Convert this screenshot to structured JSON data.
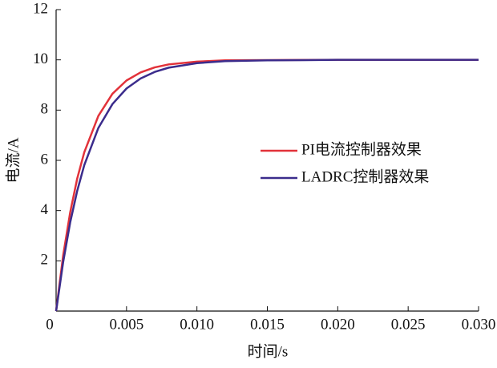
{
  "chart_data": {
    "type": "line",
    "x_label": "时间/s",
    "y_label": "电流/A",
    "x": [
      0,
      0.0005,
      0.001,
      0.0015,
      0.002,
      0.003,
      0.004,
      0.005,
      0.006,
      0.007,
      0.008,
      0.01,
      0.012,
      0.015,
      0.02,
      0.025,
      0.03
    ],
    "series": [
      {
        "name": "PI电流控制器效果",
        "color": "#e2323a",
        "values": [
          0,
          2.21,
          3.93,
          5.28,
          6.32,
          7.77,
          8.65,
          9.18,
          9.5,
          9.7,
          9.82,
          9.93,
          9.98,
          9.99,
          10,
          10,
          10
        ]
      },
      {
        "name": "LADRC控制器效果",
        "color": "#3b2c8c",
        "values": [
          0,
          1.95,
          3.53,
          4.79,
          5.81,
          7.29,
          8.24,
          8.86,
          9.26,
          9.52,
          9.69,
          9.87,
          9.95,
          9.98,
          10,
          10,
          10
        ]
      }
    ],
    "xlim": [
      0,
      0.03
    ],
    "xticks": [
      0,
      0.005,
      {
        "value": 0.01,
        "label": "0.010"
      },
      0.015,
      {
        "value": 0.02,
        "label": "0.020"
      },
      0.025,
      {
        "value": 0.03,
        "label": "0.030"
      }
    ],
    "ylim": [
      0,
      12
    ],
    "yticks": [
      2,
      4,
      6,
      8,
      10,
      12
    ],
    "grid": false,
    "legend": "right"
  }
}
